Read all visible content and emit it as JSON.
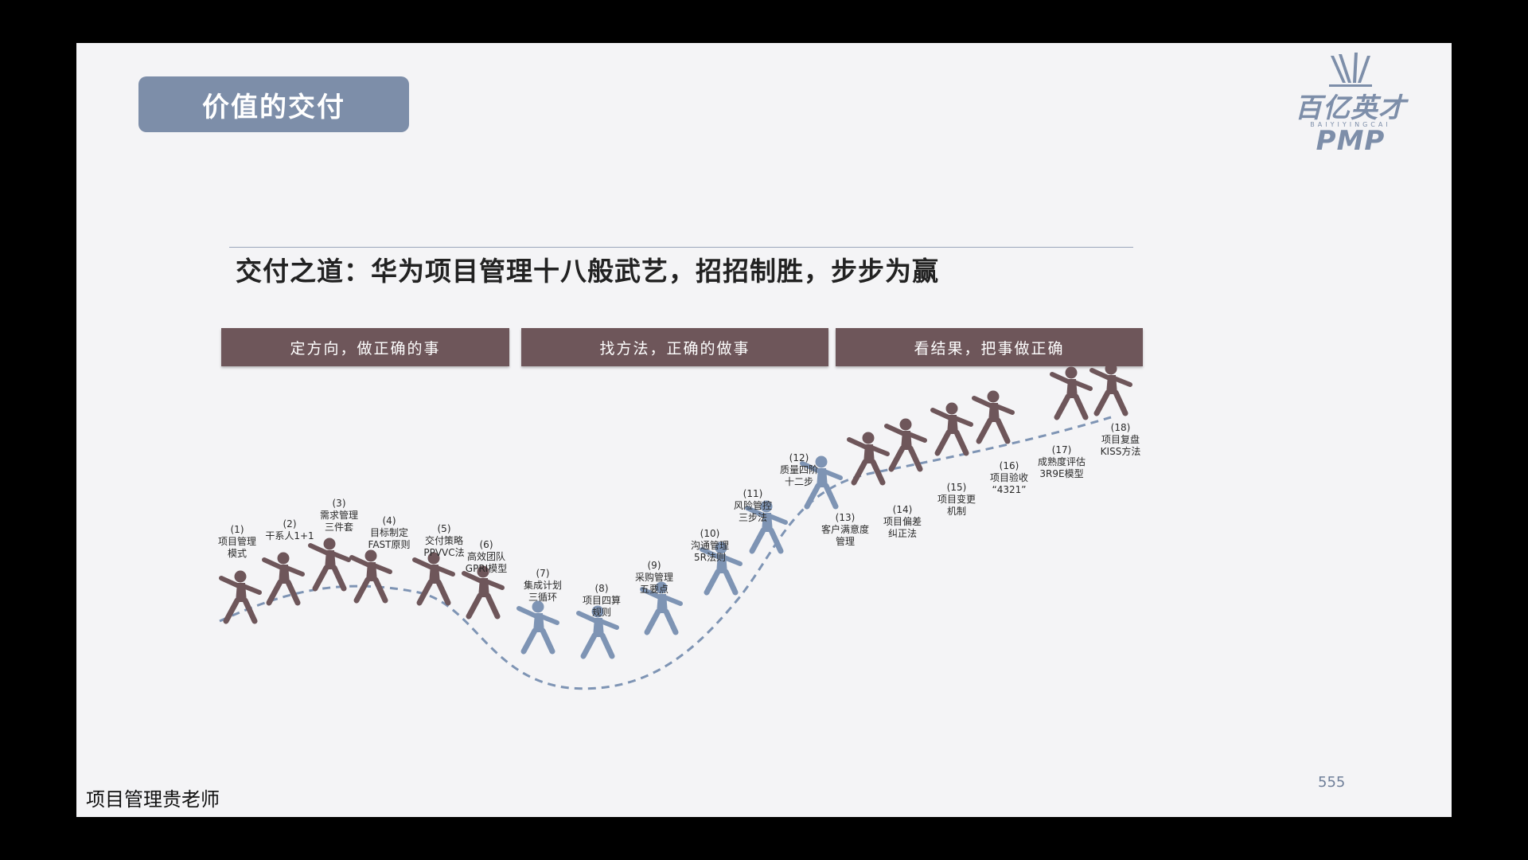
{
  "slide": {
    "title": "价值的交付",
    "logo_text": "百亿英才PMP",
    "logo_sub": "BAIYIYINGCAI",
    "headline": "交付之道：华为项目管理十八般武艺，招招制胜，步步为赢",
    "bands": [
      "定方向，做正确的事",
      "找方法，正确的做事",
      "看结果，把事做正确"
    ],
    "footer": "项目管理贵老师",
    "page_number": "555"
  },
  "steps": [
    {
      "num": "(1)",
      "lines": [
        "项目管理",
        "模式"
      ],
      "color": "#6e565a"
    },
    {
      "num": "(2)",
      "lines": [
        "干系人1+1"
      ],
      "color": "#6e565a"
    },
    {
      "num": "(3)",
      "lines": [
        "需求管理",
        "三件套"
      ],
      "color": "#6e565a"
    },
    {
      "num": "(4)",
      "lines": [
        "目标制定",
        "FAST原则"
      ],
      "color": "#6e565a"
    },
    {
      "num": "(5)",
      "lines": [
        "交付策略",
        "PPVVC法"
      ],
      "color": "#6e565a"
    },
    {
      "num": "(6)",
      "lines": [
        "高效团队",
        "GPRI模型"
      ],
      "color": "#6e565a"
    },
    {
      "num": "(7)",
      "lines": [
        "集成计划",
        "三循环"
      ],
      "color": "#7e94b4"
    },
    {
      "num": "(8)",
      "lines": [
        "项目四算",
        "规则"
      ],
      "color": "#7e94b4"
    },
    {
      "num": "(9)",
      "lines": [
        "采购管理",
        "五要点"
      ],
      "color": "#7e94b4"
    },
    {
      "num": "(10)",
      "lines": [
        "沟通管理",
        "5R法则"
      ],
      "color": "#7e94b4"
    },
    {
      "num": "(11)",
      "lines": [
        "风险管控",
        "三步法"
      ],
      "color": "#7e94b4"
    },
    {
      "num": "(12)",
      "lines": [
        "质量四阶",
        "十二步"
      ],
      "color": "#7e94b4"
    },
    {
      "num": "(13)",
      "lines": [
        "客户满意度",
        "管理"
      ],
      "color": "#6e565a"
    },
    {
      "num": "(14)",
      "lines": [
        "项目偏差",
        "纠正法"
      ],
      "color": "#6e565a"
    },
    {
      "num": "(15)",
      "lines": [
        "项目变更",
        "机制"
      ],
      "color": "#6e565a"
    },
    {
      "num": "(16)",
      "lines": [
        "项目验收",
        "“4321”"
      ],
      "color": "#6e565a"
    },
    {
      "num": "(17)",
      "lines": [
        "成熟度评估",
        "3R9E模型"
      ],
      "color": "#6e565a"
    },
    {
      "num": "(18)",
      "lines": [
        "项目复盘",
        "KISS方法"
      ],
      "color": "#6e565a"
    }
  ]
}
